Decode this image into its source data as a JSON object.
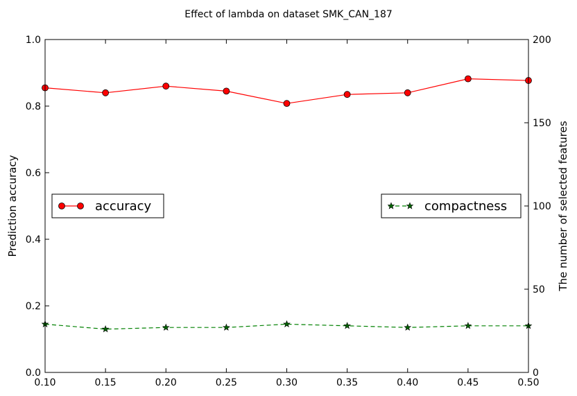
{
  "chart_data": {
    "type": "line",
    "title": "Effect of lambda on dataset SMK_CAN_187",
    "x": [
      0.1,
      0.15,
      0.2,
      0.25,
      0.3,
      0.35,
      0.4,
      0.45,
      0.5
    ],
    "xlim": [
      0.1,
      0.5
    ],
    "xticks": [
      "0.10",
      "0.15",
      "0.20",
      "0.25",
      "0.30",
      "0.35",
      "0.40",
      "0.45",
      "0.50"
    ],
    "ylabel_left": "Prediction accuracy",
    "ylim_left": [
      0.0,
      1.0
    ],
    "yticks_left": [
      "0.0",
      "0.2",
      "0.4",
      "0.6",
      "0.8",
      "1.0"
    ],
    "ylabel_right": "The number of selected features",
    "ylim_right": [
      0,
      200
    ],
    "yticks_right": [
      "0",
      "50",
      "100",
      "150",
      "200"
    ],
    "grid": false,
    "series": [
      {
        "name": "accuracy",
        "axis": "left",
        "values": [
          0.855,
          0.84,
          0.86,
          0.845,
          0.808,
          0.835,
          0.84,
          0.882,
          0.877
        ],
        "color": "#ff0000",
        "marker": "circle",
        "line_style": "solid",
        "legend_position": "center-left"
      },
      {
        "name": "compactness",
        "axis": "right",
        "values": [
          29,
          26,
          27,
          27,
          29,
          28,
          27,
          28,
          28
        ],
        "color": "#008000",
        "marker": "star",
        "line_style": "dashed",
        "legend_position": "center-right"
      }
    ]
  }
}
